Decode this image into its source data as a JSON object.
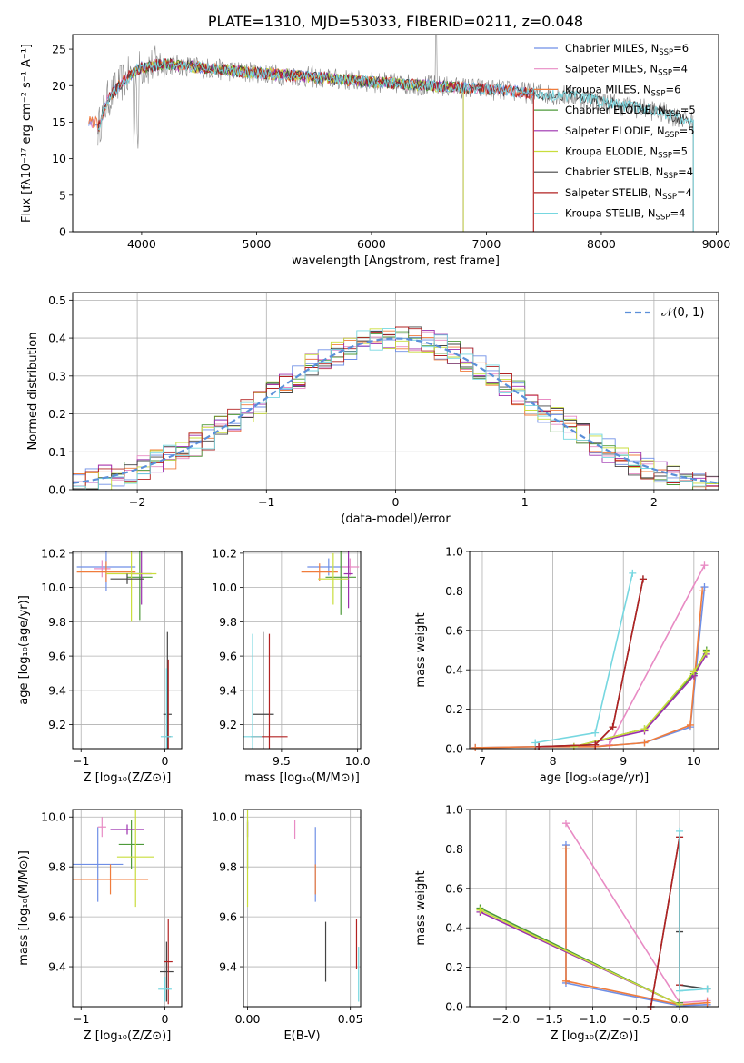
{
  "colors": {
    "chabrier_miles": "#6f8fe6",
    "salpeter_miles": "#e88bc4",
    "kroupa_miles": "#f07c3c",
    "chabrier_elodie": "#4e9a3a",
    "salpeter_elodie": "#9b2fae",
    "kroupa_elodie": "#c9dd3c",
    "chabrier_stelib": "#444444",
    "salpeter_stelib": "#b22222",
    "kroupa_stelib": "#76d7e0",
    "normal_curve": "#5b8fd9",
    "grid": "#b0b0b0"
  },
  "chart_data": [
    {
      "id": "spectrum",
      "type": "line",
      "title": "PLATE=1310, MJD=53033, FIBERID=0211, z=0.048",
      "xlabel": "wavelength [Angstrom, rest frame]",
      "ylabel": "Flux [fλ10⁻¹⁷ erg cm⁻² s⁻¹ A⁻¹]",
      "xlim": [
        3400,
        9020
      ],
      "ylim": [
        0,
        27
      ],
      "xticks": [
        "4000",
        "5000",
        "6000",
        "7000",
        "8000",
        "9000"
      ],
      "yticks": [
        "0",
        "5",
        "10",
        "15",
        "20",
        "25"
      ],
      "grid": false,
      "legend_position": "top-right",
      "legend": [
        {
          "key": "chabrier_miles",
          "label": "Chabrier MILES, N",
          "sub": "SSP",
          "tail": "=6"
        },
        {
          "key": "salpeter_miles",
          "label": "Salpeter MILES, N",
          "sub": "SSP",
          "tail": "=4"
        },
        {
          "key": "kroupa_miles",
          "label": "Kroupa MILES, N",
          "sub": "SSP",
          "tail": "=6"
        },
        {
          "key": "chabrier_elodie",
          "label": "Chabrier ELODIE, N",
          "sub": "SSP",
          "tail": "=5"
        },
        {
          "key": "salpeter_elodie",
          "label": "Salpeter ELODIE, N",
          "sub": "SSP",
          "tail": "=5"
        },
        {
          "key": "kroupa_elodie",
          "label": "Kroupa ELODIE, N",
          "sub": "SSP",
          "tail": "=5"
        },
        {
          "key": "chabrier_stelib",
          "label": "Chabrier STELIB, N",
          "sub": "SSP",
          "tail": "=4"
        },
        {
          "key": "salpeter_stelib",
          "label": "Salpeter STELIB, N",
          "sub": "SSP",
          "tail": "=4"
        },
        {
          "key": "kroupa_stelib",
          "label": "Kroupa STELIB, N",
          "sub": "SSP",
          "tail": "=4"
        }
      ],
      "data_anchors": [
        [
          3620,
          14
        ],
        [
          3700,
          18
        ],
        [
          3800,
          20
        ],
        [
          3900,
          21.5
        ],
        [
          4000,
          22.5
        ],
        [
          4200,
          23
        ],
        [
          4500,
          22.5
        ],
        [
          4800,
          22
        ],
        [
          5200,
          21.5
        ],
        [
          5600,
          21
        ],
        [
          6000,
          20.5
        ],
        [
          6500,
          20
        ],
        [
          7000,
          19.5
        ],
        [
          7400,
          19
        ],
        [
          7800,
          18.5
        ],
        [
          8100,
          17.5
        ],
        [
          8500,
          16.5
        ],
        [
          8800,
          15
        ]
      ],
      "model_ranges": {
        "chabrier_miles": [
          3540,
          7410
        ],
        "salpeter_miles": [
          3540,
          7410
        ],
        "kroupa_miles": [
          3540,
          7410
        ],
        "chabrier_elodie": [
          3900,
          6800
        ],
        "salpeter_elodie": [
          3900,
          6800
        ],
        "kroupa_elodie": [
          3900,
          6800
        ],
        "chabrier_stelib": [
          3620,
          8800
        ],
        "salpeter_stelib": [
          3620,
          7410
        ],
        "kroupa_stelib": [
          3620,
          8800
        ]
      }
    },
    {
      "id": "residuals",
      "type": "line",
      "xlabel": "(data-model)/error",
      "ylabel": "Normed distribution",
      "xlim": [
        -2.5,
        2.5
      ],
      "ylim": [
        0,
        0.52
      ],
      "xticks": [
        "−2",
        "−1",
        "0",
        "1",
        "2"
      ],
      "yticks": [
        "0.0",
        "0.1",
        "0.2",
        "0.3",
        "0.4",
        "0.5"
      ],
      "grid": true,
      "legend_position": "top-right",
      "legend": [
        {
          "label": "𝒩(0, 1)"
        }
      ],
      "bin_width": 0.1
    },
    {
      "id": "age_vs_Z",
      "type": "scatter",
      "xlabel": "Z [log₁₀(Z/Z⊙)]",
      "ylabel": "age  [log₁₀(age/yr)]",
      "xlim": [
        -1.1,
        0.2
      ],
      "ylim": [
        9.06,
        10.21
      ],
      "xticks": [
        "−1",
        "0"
      ],
      "yticks": [
        "9.2",
        "9.4",
        "9.6",
        "9.8",
        "10.0",
        "10.2"
      ],
      "grid": true,
      "points": [
        {
          "s": "chabrier_miles",
          "x": -0.7,
          "y": 10.12,
          "xe": 0.35,
          "ye": 0.14
        },
        {
          "s": "salpeter_miles",
          "x": -0.75,
          "y": 10.11,
          "xe": 0.1,
          "ye": 0.05
        },
        {
          "s": "kroupa_miles",
          "x": -0.7,
          "y": 10.09,
          "xe": 0.35,
          "ye": 0.06
        },
        {
          "s": "chabrier_elodie",
          "x": -0.3,
          "y": 10.06,
          "xe": 0.15,
          "ye": 0.25
        },
        {
          "s": "salpeter_elodie",
          "x": -0.28,
          "y": 10.08,
          "xe": 0.12,
          "ye": 0.18
        },
        {
          "s": "kroupa_elodie",
          "x": -0.4,
          "y": 10.08,
          "xe": 0.3,
          "ye": 0.28
        },
        {
          "s": "chabrier_stelib",
          "x": -0.45,
          "y": 10.05,
          "xe": 0.2,
          "ye": 0.03
        },
        {
          "s": "chabrier_stelib",
          "x": 0.03,
          "y": 9.26,
          "xe": 0.05,
          "ye": 0.48
        },
        {
          "s": "salpeter_stelib",
          "x": 0.04,
          "y": 9.13,
          "xe": 0.03,
          "ye": 0.45
        },
        {
          "s": "kroupa_stelib",
          "x": 0.02,
          "y": 9.13,
          "xe": 0.07,
          "ye": 0.4
        }
      ]
    },
    {
      "id": "age_vs_mass",
      "type": "scatter",
      "xlabel": "mass [log₁₀(M/M⊙)]",
      "ylabel": "",
      "xlim": [
        9.25,
        10.02
      ],
      "ylim": [
        9.06,
        10.21
      ],
      "xticks": [
        "9.5",
        "10.0"
      ],
      "yticks": [
        "9.2",
        "9.4",
        "9.6",
        "9.8",
        "10.0",
        "10.2"
      ],
      "grid": true,
      "points": [
        {
          "s": "chabrier_miles",
          "x": 9.81,
          "y": 10.12,
          "xe": 0.14,
          "ye": 0.05
        },
        {
          "s": "salpeter_miles",
          "x": 9.95,
          "y": 10.12,
          "xe": 0.06,
          "ye": 0.05
        },
        {
          "s": "kroupa_miles",
          "x": 9.75,
          "y": 10.09,
          "xe": 0.12,
          "ye": 0.05
        },
        {
          "s": "chabrier_elodie",
          "x": 9.89,
          "y": 10.06,
          "xe": 0.1,
          "ye": 0.22
        },
        {
          "s": "salpeter_elodie",
          "x": 9.94,
          "y": 10.08,
          "xe": 0.03,
          "ye": 0.2
        },
        {
          "s": "kroupa_elodie",
          "x": 9.84,
          "y": 10.05,
          "xe": 0.1,
          "ye": 0.15
        },
        {
          "s": "chabrier_stelib",
          "x": 9.38,
          "y": 9.26,
          "xe": 0.07,
          "ye": 0.48
        },
        {
          "s": "salpeter_stelib",
          "x": 9.42,
          "y": 9.13,
          "xe": 0.12,
          "ye": 0.6
        },
        {
          "s": "kroupa_stelib",
          "x": 9.31,
          "y": 9.13,
          "xe": 0.06,
          "ye": 0.6
        }
      ]
    },
    {
      "id": "massweight_vs_age",
      "type": "line",
      "xlabel": "age  [log₁₀(age/yr)]",
      "ylabel": "mass weight",
      "xlim": [
        6.82,
        10.35
      ],
      "ylim": [
        0,
        1
      ],
      "xticks": [
        "7",
        "8",
        "9",
        "10"
      ],
      "yticks": [
        "0.0",
        "0.2",
        "0.4",
        "0.6",
        "0.8",
        "1.0"
      ],
      "grid": true,
      "series": [
        {
          "s": "chabrier_miles",
          "x": [
            6.9,
            7.75,
            8.6,
            9.3,
            9.95,
            10.15
          ],
          "y": [
            0.005,
            0.01,
            0.01,
            0.03,
            0.11,
            0.82
          ]
        },
        {
          "s": "salpeter_miles",
          "x": [
            8.6,
            8.8,
            10.15
          ],
          "y": [
            0.01,
            0.02,
            0.93
          ]
        },
        {
          "s": "kroupa_miles",
          "x": [
            6.9,
            7.75,
            8.6,
            9.3,
            9.95,
            10.12
          ],
          "y": [
            0.005,
            0.01,
            0.01,
            0.03,
            0.12,
            0.8
          ]
        },
        {
          "s": "chabrier_elodie",
          "x": [
            8.3,
            9.3,
            10.0,
            10.18
          ],
          "y": [
            0.01,
            0.1,
            0.38,
            0.5
          ]
        },
        {
          "s": "salpeter_elodie",
          "x": [
            8.3,
            9.3,
            10.0,
            10.18
          ],
          "y": [
            0.01,
            0.09,
            0.37,
            0.48
          ]
        },
        {
          "s": "kroupa_elodie",
          "x": [
            8.3,
            9.3,
            10.0,
            10.18
          ],
          "y": [
            0.01,
            0.1,
            0.39,
            0.49
          ]
        },
        {
          "s": "chabrier_stelib",
          "x": [
            7.8,
            8.6,
            8.85,
            9.28
          ],
          "y": [
            0.01,
            0.02,
            0.11,
            0.86
          ]
        },
        {
          "s": "salpeter_stelib",
          "x": [
            7.8,
            8.6,
            8.85,
            9.28
          ],
          "y": [
            0.01,
            0.02,
            0.11,
            0.86
          ]
        },
        {
          "s": "kroupa_stelib",
          "x": [
            7.75,
            8.6,
            9.13
          ],
          "y": [
            0.03,
            0.08,
            0.89
          ]
        }
      ]
    },
    {
      "id": "mass_vs_Z",
      "type": "scatter",
      "xlabel": "Z [log₁₀(Z/Z⊙)]",
      "ylabel": "mass [log₁₀(M/M⊙)]",
      "xlim": [
        -1.1,
        0.2
      ],
      "ylim": [
        9.24,
        10.03
      ],
      "xticks": [
        "−1",
        "0"
      ],
      "yticks": [
        "9.4",
        "9.6",
        "9.8",
        "10.0"
      ],
      "grid": true,
      "points": [
        {
          "s": "chabrier_miles",
          "x": -0.8,
          "y": 9.81,
          "xe": 0.3,
          "ye": 0.15
        },
        {
          "s": "salpeter_miles",
          "x": -0.75,
          "y": 9.96,
          "xe": 0.05,
          "ye": 0.04
        },
        {
          "s": "kroupa_miles",
          "x": -0.65,
          "y": 9.75,
          "xe": 0.45,
          "ye": 0.06
        },
        {
          "s": "chabrier_elodie",
          "x": -0.4,
          "y": 9.89,
          "xe": 0.15,
          "ye": 0.1
        },
        {
          "s": "salpeter_elodie",
          "x": -0.45,
          "y": 9.95,
          "xe": 0.2,
          "ye": 0.02
        },
        {
          "s": "kroupa_elodie",
          "x": -0.35,
          "y": 9.84,
          "xe": 0.22,
          "ye": 0.2
        },
        {
          "s": "chabrier_stelib",
          "x": 0.02,
          "y": 9.38,
          "xe": 0.08,
          "ye": 0.12
        },
        {
          "s": "salpeter_stelib",
          "x": 0.04,
          "y": 9.42,
          "xe": 0.05,
          "ye": 0.17
        },
        {
          "s": "kroupa_stelib",
          "x": 0.0,
          "y": 9.31,
          "xe": 0.08,
          "ye": 0.05
        }
      ]
    },
    {
      "id": "mass_vs_EBV",
      "type": "scatter",
      "xlabel": "E(B-V)",
      "ylabel": "",
      "xlim": [
        -0.002,
        0.055
      ],
      "ylim": [
        9.24,
        10.03
      ],
      "xticks": [
        "0.00",
        "0.05"
      ],
      "yticks": [
        "9.4",
        "9.6",
        "9.8",
        "10.0"
      ],
      "grid": true,
      "points": [
        {
          "s": "chabrier_miles",
          "x": 0.033,
          "y": 9.81,
          "xe": 0,
          "ye": 0.15
        },
        {
          "s": "salpeter_miles",
          "x": 0.023,
          "y": 9.95,
          "xe": 0,
          "ye": 0.04
        },
        {
          "s": "kroupa_miles",
          "x": 0.033,
          "y": 9.75,
          "xe": 0,
          "ye": 0.06
        },
        {
          "s": "chabrier_elodie",
          "x": 0.0,
          "y": 9.89,
          "xe": 0,
          "ye": 0.1
        },
        {
          "s": "salpeter_elodie",
          "x": 0.0,
          "y": 9.95,
          "xe": 0,
          "ye": 0.03
        },
        {
          "s": "kroupa_elodie",
          "x": 0.0,
          "y": 9.84,
          "xe": 0,
          "ye": 0.2
        },
        {
          "s": "chabrier_stelib",
          "x": 0.038,
          "y": 9.46,
          "xe": 0,
          "ye": 0.12
        },
        {
          "s": "salpeter_stelib",
          "x": 0.053,
          "y": 9.49,
          "xe": 0,
          "ye": 0.1
        },
        {
          "s": "kroupa_stelib",
          "x": 0.054,
          "y": 9.37,
          "xe": 0,
          "ye": 0.11
        }
      ]
    },
    {
      "id": "massweight_vs_Z",
      "type": "line",
      "xlabel": "Z [log₁₀(Z/Z⊙)]",
      "ylabel": "mass weight",
      "xlim": [
        -2.42,
        0.45
      ],
      "ylim": [
        0,
        1
      ],
      "xticks": [
        "−2.0",
        "−1.5",
        "−1.0",
        "−0.5",
        "0.0"
      ],
      "yticks": [
        "0.0",
        "0.2",
        "0.4",
        "0.6",
        "0.8",
        "1.0"
      ],
      "grid": true,
      "series": [
        {
          "s": "chabrier_miles",
          "x": [
            -1.31,
            -1.31,
            0.0,
            0.32
          ],
          "y": [
            0.82,
            0.12,
            0.005,
            0.01
          ]
        },
        {
          "s": "salpeter_miles",
          "x": [
            -1.31,
            0.0,
            0.32
          ],
          "y": [
            0.93,
            0.02,
            0.03
          ]
        },
        {
          "s": "kroupa_miles",
          "x": [
            -1.31,
            -1.31,
            0.0,
            0.32
          ],
          "y": [
            0.8,
            0.13,
            0.01,
            0.02
          ]
        },
        {
          "s": "chabrier_elodie",
          "x": [
            -2.3,
            0.0,
            0.0
          ],
          "y": [
            0.5,
            0.01,
            0.02
          ]
        },
        {
          "s": "salpeter_elodie",
          "x": [
            -2.3,
            0.0
          ],
          "y": [
            0.48,
            0.01
          ]
        },
        {
          "s": "kroupa_elodie",
          "x": [
            -2.3,
            0.0
          ],
          "y": [
            0.49,
            0.01
          ]
        },
        {
          "s": "chabrier_stelib",
          "x": [
            -0.33,
            0.0,
            0.0,
            0.0,
            0.32
          ],
          "y": [
            0.0,
            0.86,
            0.38,
            0.11,
            0.09
          ]
        },
        {
          "s": "salpeter_stelib",
          "x": [
            -0.33,
            0.0,
            0.0
          ],
          "y": [
            0.0,
            0.86,
            0.11
          ]
        },
        {
          "s": "kroupa_stelib",
          "x": [
            0.0,
            0.0,
            0.32
          ],
          "y": [
            0.89,
            0.08,
            0.09
          ]
        }
      ]
    }
  ]
}
